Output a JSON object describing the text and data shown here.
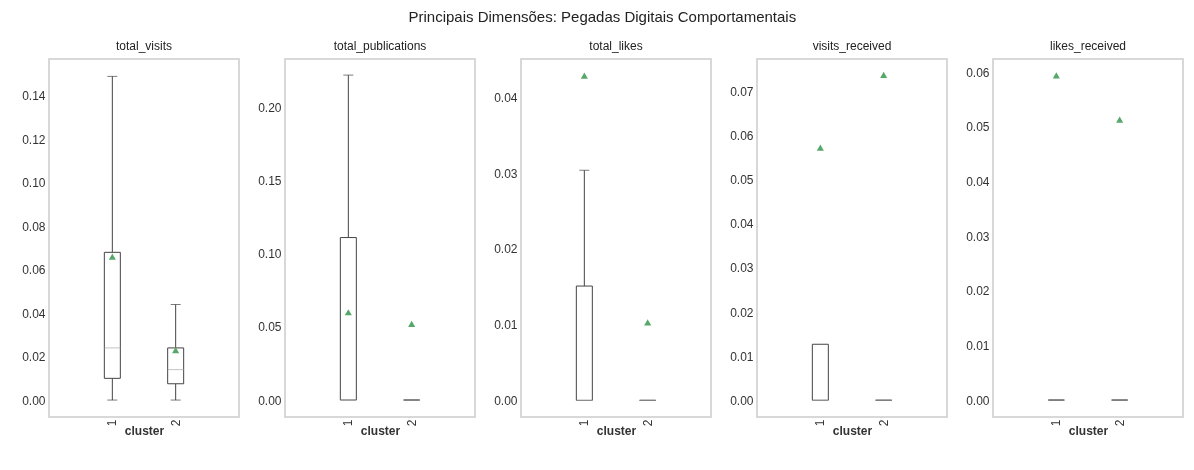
{
  "chart_data": [
    {
      "type": "box",
      "title": "total_visits",
      "annotations": [
        "Principais Dimensões: Pegadas Digitais Comportamentais"
      ],
      "xlabel": "cluster",
      "categories": [
        "1",
        "2"
      ],
      "marker": "triangle",
      "grid": false,
      "boxes": [
        {
          "low": 0,
          "q1": 0.01,
          "median": 0.024,
          "q3": 0.068,
          "high": 0.149,
          "mean": 0.066
        },
        {
          "low": 0,
          "q1": 0.0075,
          "median": 0.014,
          "q3": 0.024,
          "high": 0.044,
          "mean": 0.023
        }
      ],
      "ylim": [
        -0.0078,
        0.157
      ],
      "yticks": [
        {
          "value": 0,
          "label": "0.00"
        },
        {
          "value": 0.02,
          "label": "0.02"
        },
        {
          "value": 0.04,
          "label": "0.04"
        },
        {
          "value": 0.06,
          "label": "0.06"
        },
        {
          "value": 0.08,
          "label": "0.08"
        },
        {
          "value": 0.1,
          "label": "0.10"
        },
        {
          "value": 0.12,
          "label": "0.12"
        },
        {
          "value": 0.14,
          "label": "0.14"
        }
      ]
    },
    {
      "type": "box",
      "title": "total_publications",
      "xlabel": "cluster",
      "categories": [
        "1",
        "2"
      ],
      "marker": "triangle",
      "grid": false,
      "boxes": [
        {
          "low": 0,
          "q1": 0,
          "median": 0,
          "q3": 0.111,
          "high": 0.222,
          "mean": 0.06
        },
        {
          "low": 0,
          "q1": 0,
          "median": 0,
          "q3": 0,
          "high": 0,
          "mean": 0.052
        }
      ],
      "ylim": [
        -0.0116,
        0.233
      ],
      "yticks": [
        {
          "value": 0,
          "label": "0.00"
        },
        {
          "value": 0.05,
          "label": "0.05"
        },
        {
          "value": 0.1,
          "label": "0.10"
        },
        {
          "value": 0.15,
          "label": "0.15"
        },
        {
          "value": 0.2,
          "label": "0.20"
        }
      ]
    },
    {
      "type": "box",
      "title": "total_likes",
      "xlabel": "cluster",
      "categories": [
        "1",
        "2"
      ],
      "marker": "triangle",
      "grid": false,
      "boxes": [
        {
          "low": 0,
          "q1": 0,
          "median": 0,
          "q3": 0.0151,
          "high": 0.0304,
          "mean": 0.0429
        },
        {
          "low": 0,
          "q1": 0,
          "median": 0,
          "q3": 0,
          "high": 0,
          "mean": 0.0103
        }
      ],
      "ylim": [
        -0.0022,
        0.0451
      ],
      "yticks": [
        {
          "value": 0,
          "label": "0.00"
        },
        {
          "value": 0.01,
          "label": "0.01"
        },
        {
          "value": 0.02,
          "label": "0.02"
        },
        {
          "value": 0.03,
          "label": "0.03"
        },
        {
          "value": 0.04,
          "label": "0.04"
        }
      ]
    },
    {
      "type": "box",
      "title": "visits_received",
      "xlabel": "cluster",
      "categories": [
        "1",
        "2"
      ],
      "marker": "triangle",
      "grid": false,
      "boxes": [
        {
          "low": 0,
          "q1": 0,
          "median": 0,
          "q3": 0.0127,
          "high": 0.0127,
          "mean": 0.0573
        },
        {
          "low": 0,
          "q1": 0,
          "median": 0,
          "q3": 0,
          "high": 0,
          "mean": 0.0738
        }
      ],
      "ylim": [
        -0.0038,
        0.0774
      ],
      "yticks": [
        {
          "value": 0,
          "label": "0.00"
        },
        {
          "value": 0.01,
          "label": "0.01"
        },
        {
          "value": 0.02,
          "label": "0.02"
        },
        {
          "value": 0.03,
          "label": "0.03"
        },
        {
          "value": 0.04,
          "label": "0.04"
        },
        {
          "value": 0.05,
          "label": "0.05"
        },
        {
          "value": 0.06,
          "label": "0.06"
        },
        {
          "value": 0.07,
          "label": "0.07"
        }
      ]
    },
    {
      "type": "box",
      "title": "likes_received",
      "xlabel": "cluster",
      "categories": [
        "1",
        "2"
      ],
      "marker": "triangle",
      "grid": false,
      "boxes": [
        {
          "low": 0,
          "q1": 0,
          "median": 0,
          "q3": 0,
          "high": 0,
          "mean": 0.0594
        },
        {
          "low": 0,
          "q1": 0,
          "median": 0,
          "q3": 0,
          "high": 0,
          "mean": 0.0513
        }
      ],
      "ylim": [
        -0.0031,
        0.0624
      ],
      "yticks": [
        {
          "value": 0,
          "label": "0.00"
        },
        {
          "value": 0.01,
          "label": "0.01"
        },
        {
          "value": 0.02,
          "label": "0.02"
        },
        {
          "value": 0.03,
          "label": "0.03"
        },
        {
          "value": 0.04,
          "label": "0.04"
        },
        {
          "value": 0.05,
          "label": "0.05"
        },
        {
          "value": 0.06,
          "label": "0.06"
        }
      ]
    }
  ]
}
